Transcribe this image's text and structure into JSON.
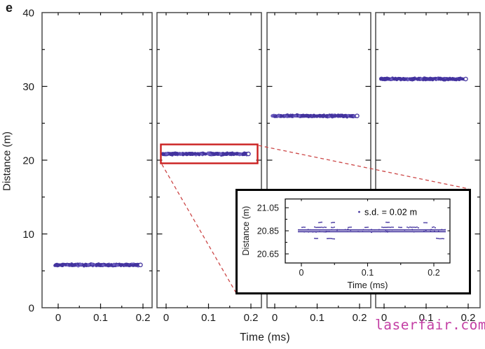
{
  "figure": {
    "panel_label": "e",
    "watermark": "laserfair.com"
  },
  "chart_data": {
    "type": "scatter",
    "title": "",
    "xlabel": "Time (ms)",
    "ylabel": "Distance (m)",
    "x_axis": {
      "range": [
        0,
        0.2
      ],
      "tick_labels": [
        "0",
        "0.1",
        "0.2"
      ],
      "tick_values": [
        0,
        0.1,
        0.2
      ],
      "minor_ticks": [
        0.05,
        0.15
      ]
    },
    "y_axis": {
      "range": [
        0,
        40
      ],
      "tick_labels": [
        "40",
        "30",
        "20",
        "10",
        "0"
      ],
      "tick_values": [
        40,
        30,
        20,
        10,
        0
      ],
      "minor_ticks": [
        5,
        15,
        25,
        35
      ]
    },
    "panels": [
      {
        "distance_m": 5.8,
        "time_span_ms": [
          0,
          0.2
        ],
        "highlighted": false
      },
      {
        "distance_m": 20.85,
        "time_span_ms": [
          0,
          0.2
        ],
        "highlighted": true
      },
      {
        "distance_m": 26.0,
        "time_span_ms": [
          0,
          0.2
        ],
        "highlighted": false
      },
      {
        "distance_m": 31.0,
        "time_span_ms": [
          0,
          0.2
        ],
        "highlighted": false
      }
    ],
    "marker": {
      "shape": "circle",
      "last_point_open": true
    }
  },
  "inset": {
    "ylabel": "Distance (m)",
    "xlabel": "Time (ms)",
    "annotation": "s.d. = 0.02 m",
    "mean_distance_m": 20.85,
    "sd_m": 0.02,
    "y_axis": {
      "tick_labels": [
        "21.05",
        "20.85",
        "20.65"
      ],
      "tick_values": [
        21.05,
        20.85,
        20.65
      ],
      "minor_ticks": [
        20.95,
        20.75
      ]
    },
    "x_axis": {
      "tick_labels": [
        "0",
        "0.1",
        "0.2"
      ],
      "tick_values": [
        0,
        0.1,
        0.2
      ],
      "minor_ticks": [
        0.05,
        0.15
      ]
    },
    "rows": [
      {
        "offset_m": 0.072,
        "density": 0.1
      },
      {
        "offset_m": 0.03,
        "density": 0.55
      },
      {
        "offset_m": 0.008,
        "density": 1.0
      },
      {
        "offset_m": -0.008,
        "density": 1.0
      },
      {
        "offset_m": -0.068,
        "density": 0.42
      },
      {
        "offset_m": -0.11,
        "density": 0.08
      }
    ]
  },
  "colors": {
    "points": "#43339e",
    "points_light": "#6b5cc0",
    "highlight_box": "#cb1f1f",
    "callout_line": "#cc4747",
    "axis": "#4a4a4a",
    "tick": "#111111",
    "text": "#1a1a1a",
    "watermark": "#c035a0"
  }
}
